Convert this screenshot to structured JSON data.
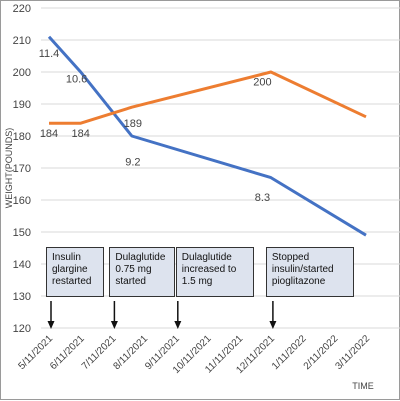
{
  "chart_data": {
    "type": "line",
    "title": "",
    "xlabel": "TIME",
    "ylabel": "WEIGHT(POUNDS)",
    "ylim": [
      120,
      220
    ],
    "yticks": [
      120,
      130,
      140,
      150,
      160,
      170,
      180,
      190,
      200,
      210,
      220
    ],
    "xlim": [
      "2021-05-11",
      "2022-03-11"
    ],
    "xtick_labels": [
      "5/11/2021",
      "6/11/2021",
      "7/11/2021",
      "8/11/2021",
      "9/11/2021",
      "10/11/2021",
      "11/11/2021",
      "12/11/2021",
      "1/11/2022",
      "2/11/2022",
      "3/11/2022"
    ],
    "grid": true,
    "series": [
      {
        "color": "#4472c4",
        "points": [
          {
            "x": "2021-05-11",
            "y": 211
          },
          {
            "x": "2021-06-11",
            "y": 200
          },
          {
            "x": "2021-07-30",
            "y": 180
          },
          {
            "x": "2021-12-11",
            "y": 167
          },
          {
            "x": "2022-03-11",
            "y": 149
          }
        ]
      },
      {
        "color": "#ed7d31",
        "points": [
          {
            "x": "2021-05-11",
            "y": 184
          },
          {
            "x": "2021-06-11",
            "y": 184
          },
          {
            "x": "2021-07-30",
            "y": 189
          },
          {
            "x": "2021-12-11",
            "y": 200
          },
          {
            "x": "2022-03-11",
            "y": 186
          }
        ]
      }
    ],
    "data_labels": [
      {
        "text": "11.4",
        "x": "2021-05-11",
        "y": 206
      },
      {
        "text": "10.6",
        "x": "2021-06-07",
        "y": 198
      },
      {
        "text": "184",
        "x": "2021-05-11",
        "y": 181
      },
      {
        "text": "184",
        "x": "2021-06-11",
        "y": 181
      },
      {
        "text": "189",
        "x": "2021-07-31",
        "y": 184
      },
      {
        "text": "9.2",
        "x": "2021-07-31",
        "y": 172
      },
      {
        "text": "200",
        "x": "2021-12-03",
        "y": 197
      },
      {
        "text": "8.3",
        "x": "2021-12-03",
        "y": 161
      }
    ],
    "annotations": [
      {
        "text": "Insulin glargine restarted",
        "x": "2021-05-11"
      },
      {
        "text": "Dulaglutide 0.75 mg started",
        "x": "2021-07-11"
      },
      {
        "text": "Dulaglutide increased to 1.5 mg",
        "x": "2021-09-11"
      },
      {
        "text": "Stopped insulin/started pioglitazone",
        "x": "2021-12-11"
      }
    ]
  }
}
